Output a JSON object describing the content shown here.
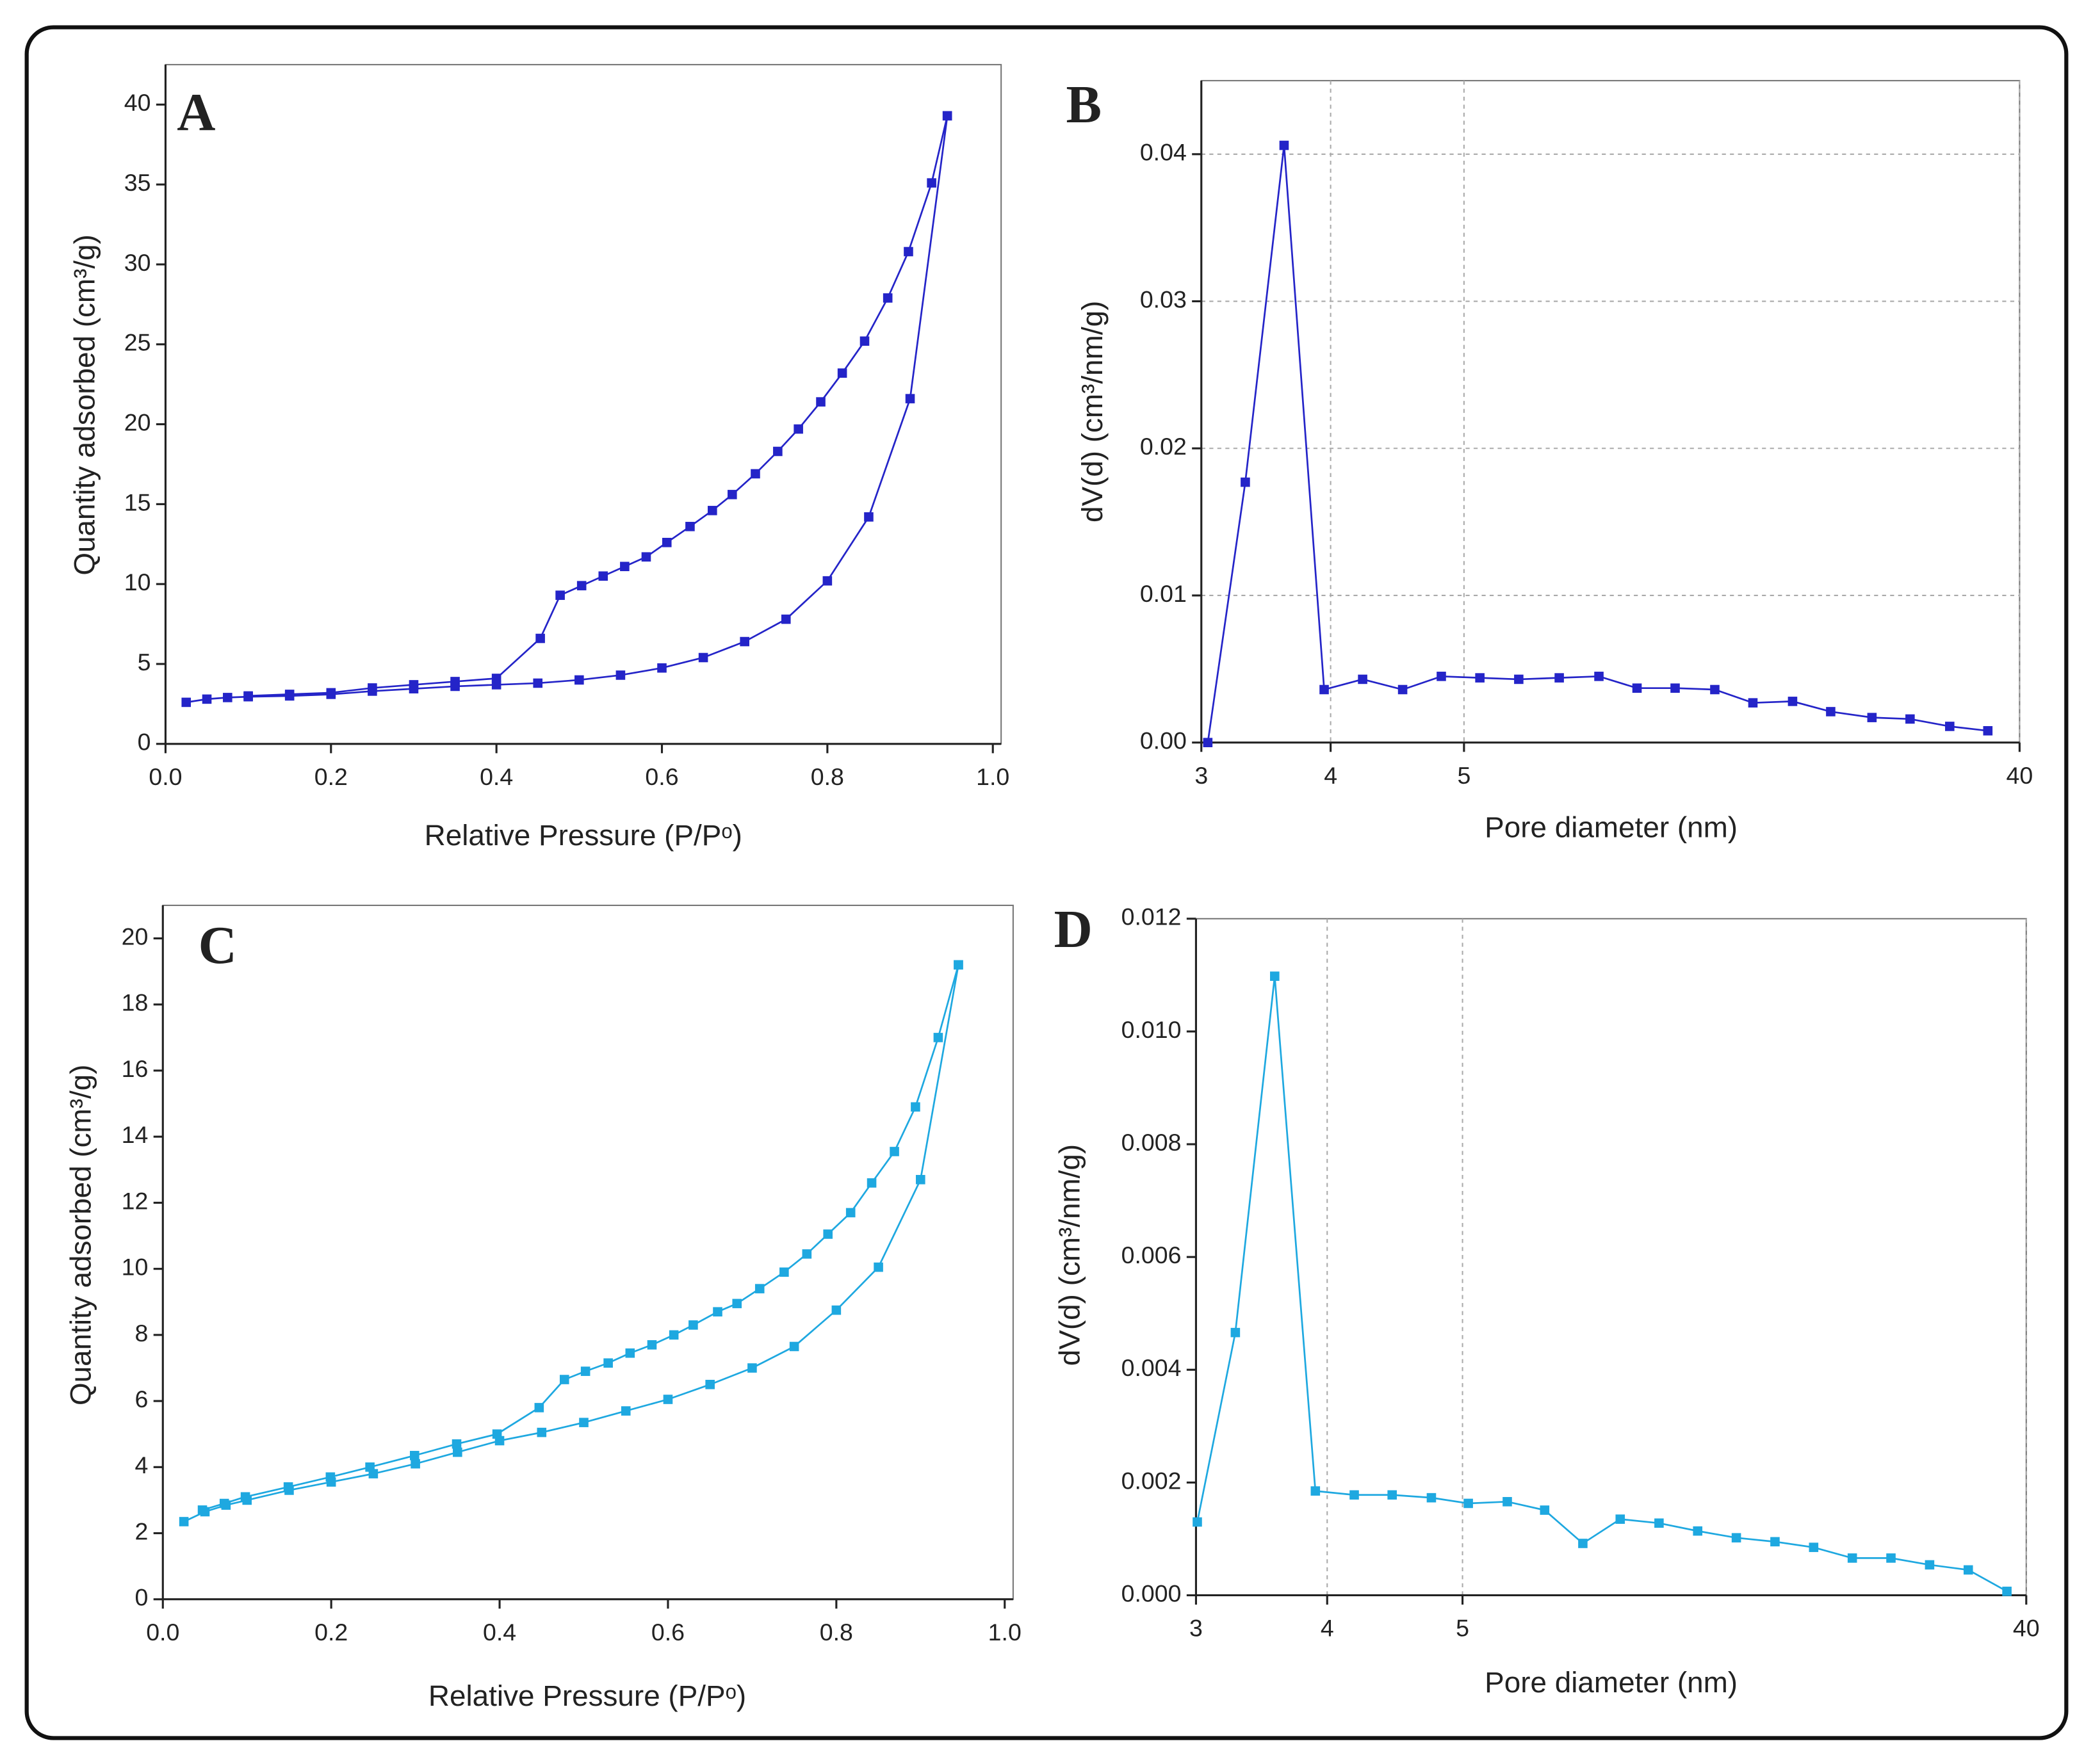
{
  "chart_data": [
    {
      "type": "line",
      "panel": "A",
      "xlabel": "Relative Pressure (P/Pᵒ)",
      "ylabel": "Quantity adsorbed (cm³/g)",
      "color": "#2424c8",
      "grid": false,
      "xlim": [
        0,
        1.01
      ],
      "ylim": [
        0,
        42.5
      ],
      "xticks": [
        {
          "value": 0,
          "label": "0.0"
        },
        {
          "value": 0.2,
          "label": "0.2"
        },
        {
          "value": 0.4,
          "label": "0.4"
        },
        {
          "value": 0.6,
          "label": "0.6"
        },
        {
          "value": 0.8,
          "label": "0.8"
        },
        {
          "value": 1,
          "label": "1.0"
        }
      ],
      "yticks": [
        0,
        5,
        10,
        15,
        20,
        25,
        30,
        35,
        40
      ],
      "series": [
        {
          "x": [
            0.025,
            0.05,
            0.075,
            0.1,
            0.15,
            0.2,
            0.25,
            0.3,
            0.35,
            0.4,
            0.45,
            0.5,
            0.55,
            0.6,
            0.65,
            0.7,
            0.75,
            0.8,
            0.85,
            0.9,
            0.945
          ],
          "values": [
            2.6,
            2.8,
            2.9,
            2.95,
            3.0,
            3.1,
            3.3,
            3.45,
            3.6,
            3.7,
            3.8,
            4.0,
            4.3,
            4.75,
            5.4,
            6.4,
            7.8,
            10.2,
            14.2,
            21.6,
            39.3
          ]
        },
        {
          "x": [
            0.945,
            0.926,
            0.898,
            0.873,
            0.845,
            0.818,
            0.792,
            0.765,
            0.74,
            0.713,
            0.685,
            0.661,
            0.634,
            0.606,
            0.581,
            0.555,
            0.529,
            0.503,
            0.477,
            0.453,
            0.4,
            0.35,
            0.3,
            0.25,
            0.2,
            0.15,
            0.1
          ],
          "values": [
            39.3,
            35.1,
            30.8,
            27.9,
            25.2,
            23.2,
            21.4,
            19.7,
            18.3,
            16.9,
            15.6,
            14.6,
            13.6,
            12.6,
            11.7,
            11.1,
            10.5,
            9.9,
            9.3,
            6.6,
            4.1,
            3.9,
            3.7,
            3.5,
            3.2,
            3.1,
            3.0
          ]
        }
      ]
    },
    {
      "type": "line",
      "panel": "B",
      "xlabel": "Pore diameter (nm)",
      "ylabel": "dV(d) (cm³/nm/g)",
      "color": "#2424c8",
      "grid": "both",
      "xscale": "segmented",
      "xlim": [
        3,
        40
      ],
      "ylim": [
        0,
        0.045
      ],
      "xticks": [
        3,
        4,
        5,
        40
      ],
      "yticks": [
        {
          "value": 0,
          "label": "0.00"
        },
        {
          "value": 0.01,
          "label": "0.01"
        },
        {
          "value": 0.02,
          "label": "0.02"
        },
        {
          "value": 0.03,
          "label": "0.03"
        },
        {
          "value": 0.04,
          "label": "0.04"
        }
      ],
      "series": [
        {
          "x": [
            3.05,
            3.34,
            3.64,
            3.95,
            4.24,
            4.54,
            4.83,
            6.0,
            8.45,
            11.0,
            13.5,
            15.9,
            18.3,
            20.8,
            23.2,
            25.7,
            28.1,
            30.7,
            33.1,
            35.6,
            38.0
          ],
          "values": [
            0,
            0.0177,
            0.0406,
            0.0036,
            0.0043,
            0.0036,
            0.0045,
            0.0044,
            0.0043,
            0.0044,
            0.0045,
            0.0037,
            0.0037,
            0.0036,
            0.0027,
            0.0028,
            0.0021,
            0.0017,
            0.0016,
            0.0011,
            0.0008
          ]
        }
      ]
    },
    {
      "type": "line",
      "panel": "C",
      "xlabel": "Relative Pressure (P/Pᵒ)",
      "ylabel": "Quantity adsorbed (cm³/g)",
      "color": "#1ea8e0",
      "grid": false,
      "xlim": [
        0,
        1.01
      ],
      "ylim": [
        0,
        21
      ],
      "xticks": [
        {
          "value": 0,
          "label": "0.0"
        },
        {
          "value": 0.2,
          "label": "0.2"
        },
        {
          "value": 0.4,
          "label": "0.4"
        },
        {
          "value": 0.6,
          "label": "0.6"
        },
        {
          "value": 0.8,
          "label": "0.8"
        },
        {
          "value": 1,
          "label": "1.0"
        }
      ],
      "yticks": [
        0,
        2,
        4,
        6,
        8,
        10,
        12,
        14,
        16,
        18,
        20
      ],
      "series": [
        {
          "x": [
            0.025,
            0.05,
            0.075,
            0.1,
            0.15,
            0.2,
            0.25,
            0.3,
            0.35,
            0.4,
            0.45,
            0.5,
            0.55,
            0.6,
            0.65,
            0.7,
            0.75,
            0.8,
            0.85,
            0.9,
            0.945
          ],
          "values": [
            2.35,
            2.65,
            2.85,
            3.0,
            3.3,
            3.55,
            3.8,
            4.1,
            4.45,
            4.8,
            5.05,
            5.35,
            5.7,
            6.05,
            6.5,
            7.0,
            7.65,
            8.75,
            10.05,
            12.7,
            19.2
          ]
        },
        {
          "x": [
            0.945,
            0.921,
            0.894,
            0.869,
            0.842,
            0.817,
            0.79,
            0.765,
            0.738,
            0.709,
            0.682,
            0.659,
            0.63,
            0.607,
            0.581,
            0.555,
            0.529,
            0.502,
            0.477,
            0.447,
            0.397,
            0.349,
            0.299,
            0.246,
            0.199,
            0.149,
            0.098,
            0.073,
            0.047
          ],
          "values": [
            19.2,
            17.0,
            14.9,
            13.55,
            12.6,
            11.7,
            11.05,
            10.45,
            9.9,
            9.4,
            8.95,
            8.7,
            8.3,
            8.0,
            7.7,
            7.45,
            7.15,
            6.9,
            6.65,
            5.8,
            5.0,
            4.7,
            4.35,
            4.0,
            3.7,
            3.4,
            3.1,
            2.9,
            2.7
          ]
        }
      ]
    },
    {
      "type": "line",
      "panel": "D",
      "xlabel": "Pore diameter (nm)",
      "ylabel": "dV(d) (cm³/nm/g)",
      "color": "#1ea8e0",
      "grid": "x",
      "xscale": "segmented",
      "xlim": [
        3,
        40
      ],
      "ylim": [
        0,
        0.012
      ],
      "xticks": [
        3,
        4,
        5,
        40
      ],
      "yticks": [
        {
          "value": 0,
          "label": "0.000"
        },
        {
          "value": 0.002,
          "label": "0.002"
        },
        {
          "value": 0.004,
          "label": "0.004"
        },
        {
          "value": 0.006,
          "label": "0.006"
        },
        {
          "value": 0.008,
          "label": "0.008"
        },
        {
          "value": 0.01,
          "label": "0.010"
        },
        {
          "value": 0.012,
          "label": "0.012"
        }
      ],
      "series": [
        {
          "x": [
            3.01,
            3.3,
            3.6,
            3.91,
            4.2,
            4.48,
            4.77,
            5.36,
            7.78,
            10.1,
            12.47,
            14.79,
            17.2,
            19.6,
            22.0,
            24.4,
            26.8,
            29.2,
            31.6,
            34.0,
            36.4,
            38.8
          ],
          "values": [
            0.0013,
            0.00466,
            0.01098,
            0.00185,
            0.00178,
            0.00178,
            0.00173,
            0.00163,
            0.00166,
            0.00151,
            0.00092,
            0.00135,
            0.00128,
            0.00114,
            0.00102,
            0.00095,
            0.00085,
            0.00066,
            0.00066,
            0.00054,
            0.00045,
            7e-05
          ]
        }
      ]
    }
  ]
}
